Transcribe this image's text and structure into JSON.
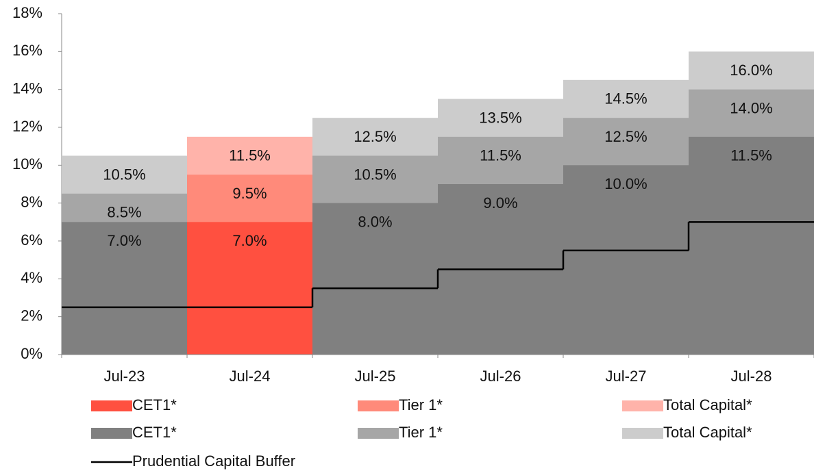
{
  "chart_data": {
    "type": "bar",
    "categories": [
      "Jul-23",
      "Jul-24",
      "Jul-25",
      "Jul-26",
      "Jul-27",
      "Jul-28"
    ],
    "series": [
      {
        "name": "CET1*",
        "color": "#ff5040",
        "values": [
          null,
          7.0,
          null,
          null,
          null,
          null
        ],
        "value_labels": [
          null,
          "7.0%",
          null,
          null,
          null,
          null
        ]
      },
      {
        "name": "Tier 1*",
        "color": "#ff8a7a",
        "values": [
          null,
          9.5,
          null,
          null,
          null,
          null
        ],
        "value_labels": [
          null,
          "9.5%",
          null,
          null,
          null,
          null
        ]
      },
      {
        "name": "Total Capital*",
        "color": "#ffb3aa",
        "values": [
          null,
          11.5,
          null,
          null,
          null,
          null
        ],
        "value_labels": [
          null,
          "11.5%",
          null,
          null,
          null,
          null
        ]
      },
      {
        "name": "CET1*",
        "color": "#808080",
        "values": [
          7.0,
          null,
          8.0,
          9.0,
          10.0,
          11.5
        ],
        "value_labels": [
          "7.0%",
          null,
          "8.0%",
          "9.0%",
          "10.0%",
          "11.5%"
        ]
      },
      {
        "name": "Tier 1*",
        "color": "#a6a6a6",
        "values": [
          8.5,
          null,
          10.5,
          11.5,
          12.5,
          14.0
        ],
        "value_labels": [
          "8.5%",
          null,
          "10.5%",
          "11.5%",
          "12.5%",
          "14.0%"
        ]
      },
      {
        "name": "Total Capital*",
        "color": "#cccccc",
        "values": [
          10.5,
          null,
          12.5,
          13.5,
          14.5,
          16.0
        ],
        "value_labels": [
          "10.5%",
          null,
          "12.5%",
          "13.5%",
          "14.5%",
          "16.0%"
        ]
      },
      {
        "name": "Prudential Capital Buffer",
        "type": "line",
        "step": true,
        "color": "#000000",
        "values": [
          2.5,
          2.5,
          3.5,
          4.5,
          5.5,
          7.0
        ]
      }
    ],
    "ylim": [
      0,
      18
    ],
    "yticks": [
      {
        "value": 0,
        "label": "0%"
      },
      {
        "value": 2,
        "label": "2%"
      },
      {
        "value": 4,
        "label": "4%"
      },
      {
        "value": 6,
        "label": "6%"
      },
      {
        "value": 8,
        "label": "8%"
      },
      {
        "value": 10,
        "label": "10%"
      },
      {
        "value": 12,
        "label": "12%"
      },
      {
        "value": 14,
        "label": "14%"
      },
      {
        "value": 16,
        "label": "16%"
      },
      {
        "value": 18,
        "label": "18%"
      }
    ],
    "grid": false
  }
}
